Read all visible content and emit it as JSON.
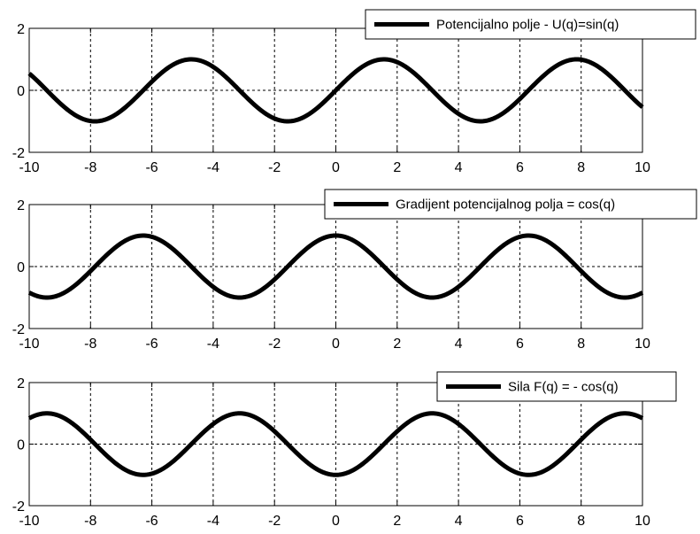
{
  "chart_data": [
    {
      "type": "line",
      "xlim": [
        -10,
        10
      ],
      "ylim": [
        -2,
        2
      ],
      "x_ticks": [
        -10,
        -8,
        -6,
        -4,
        -2,
        0,
        2,
        4,
        6,
        8,
        10
      ],
      "y_ticks": [
        -2,
        0,
        2
      ],
      "x_tick_labels": [
        "-10",
        "-8",
        "-6",
        "-4",
        "-2",
        "0",
        "2",
        "4",
        "6",
        "8",
        "10"
      ],
      "y_tick_labels": [
        "-2",
        "0",
        "2"
      ],
      "grid": true,
      "legend_position": "top-right",
      "series": [
        {
          "name": "Potencijalno polje - U(q)=sin(q)",
          "function": "sin(q)",
          "color": "#000000"
        }
      ]
    },
    {
      "type": "line",
      "xlim": [
        -10,
        10
      ],
      "ylim": [
        -2,
        2
      ],
      "x_ticks": [
        -10,
        -8,
        -6,
        -4,
        -2,
        0,
        2,
        4,
        6,
        8,
        10
      ],
      "y_ticks": [
        -2,
        0,
        2
      ],
      "x_tick_labels": [
        "-10",
        "-8",
        "-6",
        "-4",
        "-2",
        "0",
        "2",
        "4",
        "6",
        "8",
        "10"
      ],
      "y_tick_labels": [
        "-2",
        "0",
        "2"
      ],
      "grid": true,
      "legend_position": "top-right",
      "series": [
        {
          "name": "Gradijent potencijalnog polja = cos(q)",
          "function": "cos(q)",
          "color": "#000000"
        }
      ]
    },
    {
      "type": "line",
      "xlim": [
        -10,
        10
      ],
      "ylim": [
        -2,
        2
      ],
      "x_ticks": [
        -10,
        -8,
        -6,
        -4,
        -2,
        0,
        2,
        4,
        6,
        8,
        10
      ],
      "y_ticks": [
        -2,
        0,
        2
      ],
      "x_tick_labels": [
        "-10",
        "-8",
        "-6",
        "-4",
        "-2",
        "0",
        "2",
        "4",
        "6",
        "8",
        "10"
      ],
      "y_tick_labels": [
        "-2",
        "0",
        "2"
      ],
      "grid": true,
      "legend_position": "top-right",
      "series": [
        {
          "name": "Sila F(q) = - cos(q)",
          "function": "-cos(q)",
          "color": "#000000"
        }
      ]
    }
  ]
}
